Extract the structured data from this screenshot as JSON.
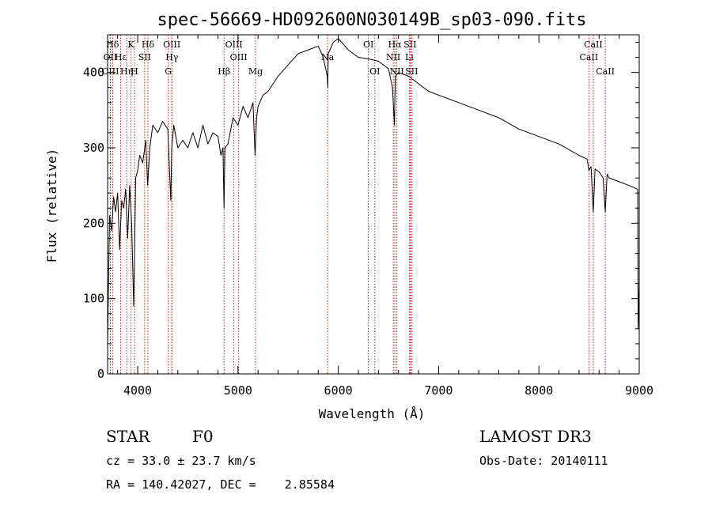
{
  "chart_data": {
    "type": "line",
    "title": "spec-56669-HD092600N030149B_sp03-090.fits",
    "xlabel": "Wavelength (Å)",
    "ylabel": "Flux (relative)",
    "xlim": [
      3700,
      9000
    ],
    "ylim": [
      0,
      450
    ],
    "xticks": [
      4000,
      5000,
      6000,
      7000,
      8000,
      9000
    ],
    "yticks": [
      0,
      100,
      200,
      300,
      400
    ],
    "series": [
      {
        "name": "spectrum",
        "x": [
          3700,
          3720,
          3740,
          3760,
          3780,
          3800,
          3820,
          3840,
          3860,
          3880,
          3900,
          3920,
          3940,
          3960,
          3970,
          3980,
          4000,
          4020,
          4050,
          4080,
          4100,
          4120,
          4150,
          4200,
          4250,
          4300,
          4330,
          4340,
          4360,
          4400,
          4450,
          4500,
          4550,
          4600,
          4650,
          4700,
          4750,
          4800,
          4830,
          4850,
          4861,
          4870,
          4900,
          4950,
          5000,
          5050,
          5100,
          5150,
          5170,
          5185,
          5200,
          5250,
          5300,
          5400,
          5500,
          5600,
          5700,
          5800,
          5850,
          5890,
          5895,
          5900,
          5950,
          6000,
          6100,
          6200,
          6300,
          6400,
          6450,
          6500,
          6540,
          6560,
          6563,
          6570,
          6600,
          6700,
          6800,
          6900,
          7000,
          7200,
          7400,
          7600,
          7800,
          8000,
          8200,
          8400,
          8480,
          8498,
          8520,
          8542,
          8560,
          8600,
          8640,
          8662,
          8680,
          8700,
          8800,
          8900,
          8985,
          8990,
          9000
        ],
        "y": [
          40,
          210,
          190,
          235,
          215,
          240,
          165,
          230,
          220,
          245,
          180,
          250,
          200,
          90,
          170,
          260,
          270,
          290,
          280,
          310,
          250,
          300,
          330,
          320,
          335,
          325,
          230,
          300,
          330,
          300,
          310,
          300,
          320,
          300,
          330,
          305,
          320,
          315,
          290,
          300,
          220,
          300,
          305,
          340,
          330,
          355,
          340,
          360,
          290,
          340,
          355,
          370,
          375,
          395,
          410,
          425,
          430,
          435,
          420,
          395,
          380,
          425,
          440,
          445,
          430,
          420,
          418,
          415,
          410,
          405,
          380,
          330,
          360,
          395,
          400,
          395,
          385,
          375,
          370,
          360,
          350,
          340,
          325,
          315,
          305,
          290,
          285,
          270,
          275,
          215,
          272,
          268,
          260,
          215,
          265,
          260,
          255,
          250,
          245,
          60,
          120
        ]
      }
    ],
    "line_markers": [
      {
        "label": "Hδ",
        "x": 3750,
        "row": 0
      },
      {
        "label": "OII",
        "x": 3727,
        "row": 1
      },
      {
        "label": "OIII",
        "x": 3727,
        "row": 2
      },
      {
        "label": "Hε",
        "x": 3830,
        "row": 1
      },
      {
        "label": "Hη",
        "x": 3890,
        "row": 2
      },
      {
        "label": "K",
        "x": 3934,
        "row": 0
      },
      {
        "label": "H",
        "x": 3968,
        "row": 2
      },
      {
        "label": "SII",
        "x": 4070,
        "row": 1
      },
      {
        "label": "Hδ",
        "x": 4102,
        "row": 0
      },
      {
        "label": "OIII",
        "x": 4340,
        "row": 0
      },
      {
        "label": "Hγ",
        "x": 4341,
        "row": 1
      },
      {
        "label": "G",
        "x": 4305,
        "row": 2
      },
      {
        "label": "Hβ",
        "x": 4861,
        "row": 2
      },
      {
        "label": "OIII",
        "x": 4959,
        "row": 0
      },
      {
        "label": "OIII",
        "x": 5007,
        "row": 1
      },
      {
        "label": "Mg",
        "x": 5175,
        "row": 2
      },
      {
        "label": "Na",
        "x": 5893,
        "row": 1
      },
      {
        "label": "OI",
        "x": 6300,
        "row": 0
      },
      {
        "label": "OI",
        "x": 6364,
        "row": 2
      },
      {
        "label": "Hα",
        "x": 6563,
        "row": 0
      },
      {
        "label": "SII",
        "x": 6716,
        "row": 0
      },
      {
        "label": "NII",
        "x": 6548,
        "row": 1
      },
      {
        "label": "Li",
        "x": 6708,
        "row": 1
      },
      {
        "label": "NII",
        "x": 6584,
        "row": 2
      },
      {
        "label": "SII",
        "x": 6731,
        "row": 2
      },
      {
        "label": "CaII",
        "x": 8542,
        "row": 0
      },
      {
        "label": "CaII",
        "x": 8498,
        "row": 1
      },
      {
        "label": "CaII",
        "x": 8662,
        "row": 2
      }
    ],
    "grid": false,
    "legend": "none",
    "line_color": "#000000",
    "marker_color": "#cc0000"
  },
  "info": {
    "obj_class": "STAR",
    "subclass": "F0",
    "cz": "cz = 33.0 ± 23.7 km/s",
    "radec": "RA = 140.42027, DEC =    2.85584",
    "survey": "LAMOST DR3",
    "obs_date": "Obs-Date: 20140111"
  }
}
